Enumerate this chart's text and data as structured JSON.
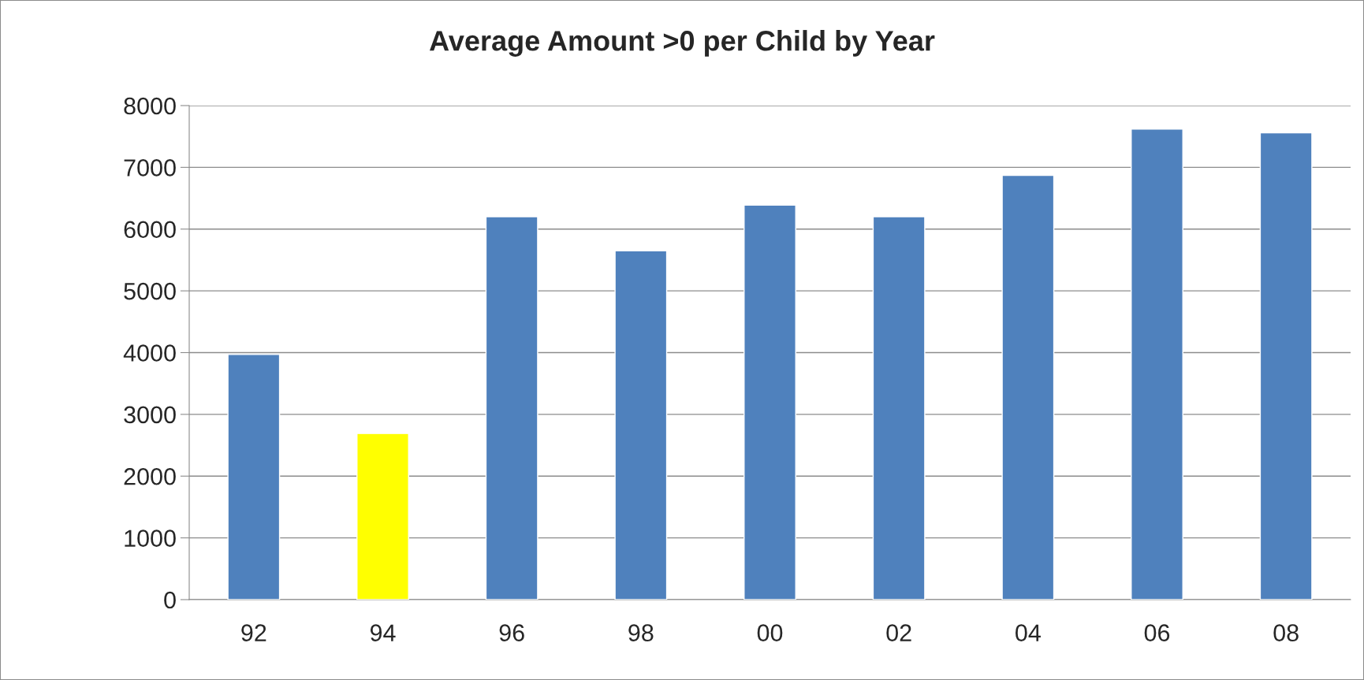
{
  "chart_data": {
    "type": "bar",
    "title": "Average Amount >0 per Child by Year",
    "categories": [
      "92",
      "94",
      "96",
      "98",
      "00",
      "02",
      "04",
      "06",
      "08"
    ],
    "values": [
      3970,
      2690,
      6200,
      5650,
      6390,
      6200,
      6870,
      7620,
      7560
    ],
    "colors": [
      "#4f81bd",
      "#ffff00",
      "#4f81bd",
      "#4f81bd",
      "#4f81bd",
      "#4f81bd",
      "#4f81bd",
      "#4f81bd",
      "#4f81bd"
    ],
    "ylim": [
      0,
      8000
    ],
    "yticks": [
      0,
      1000,
      2000,
      3000,
      4000,
      5000,
      6000,
      7000,
      8000
    ],
    "grid": "y"
  }
}
